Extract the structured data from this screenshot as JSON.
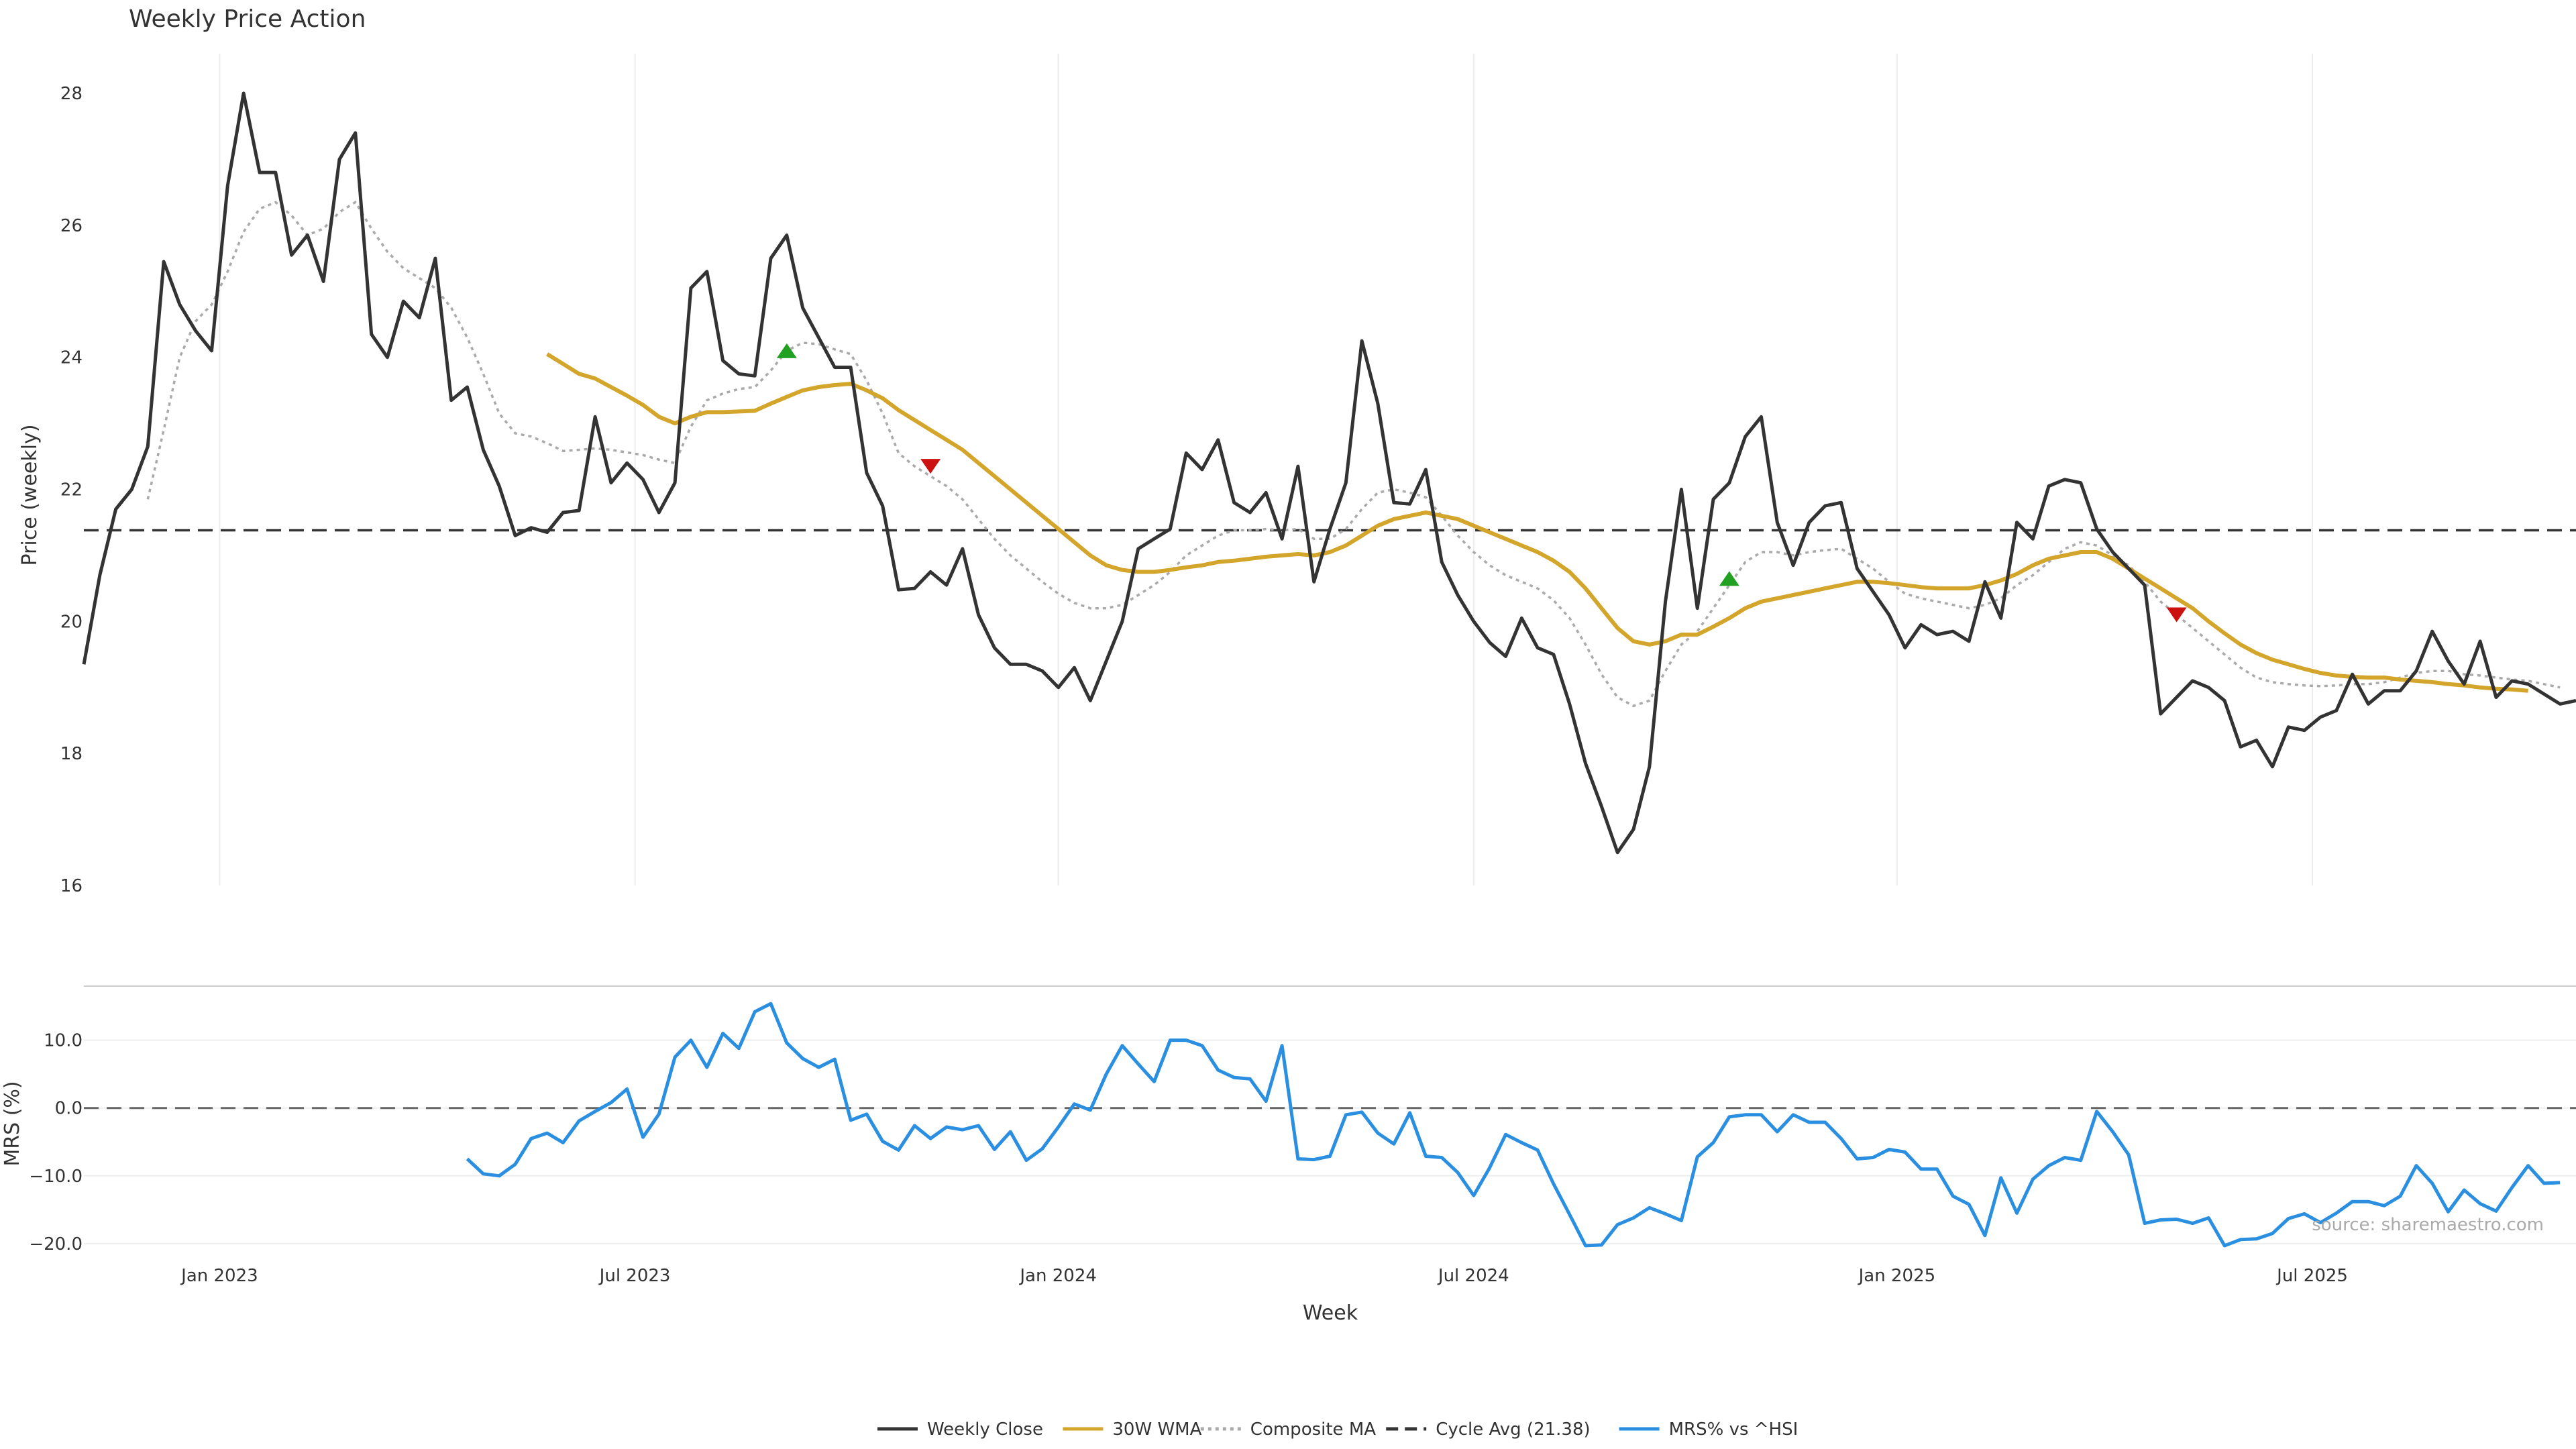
{
  "chart_data": {
    "type": "line",
    "title": "Weekly Price Action",
    "source": "source: sharemaestro.com",
    "xlabel": "Week",
    "x_ticks": [
      {
        "label": "Jan 2023",
        "week": 8.5
      },
      {
        "label": "Jul 2023",
        "week": 34.5
      },
      {
        "label": "Jan 2024",
        "week": 61
      },
      {
        "label": "Jul 2024",
        "week": 87
      },
      {
        "label": "Jan 2025",
        "week": 113.5
      },
      {
        "label": "Jul 2025",
        "week": 139.5
      }
    ],
    "xlim": [
      0,
      156
    ],
    "price_panel": {
      "ylabel": "Price (weekly)",
      "ylim": [
        16,
        28.6
      ],
      "yticks": [
        16,
        18,
        20,
        22,
        24,
        26,
        28
      ],
      "series": [
        {
          "name": "Weekly Close",
          "color": "#333333",
          "values": [
            19.35,
            20.7,
            21.7,
            22.0,
            22.65,
            25.45,
            24.8,
            24.4,
            24.1,
            26.6,
            28.0,
            26.8,
            26.8,
            25.55,
            25.85,
            25.15,
            27.0,
            27.4,
            24.35,
            24.0,
            24.85,
            24.6,
            25.5,
            23.35,
            23.55,
            22.6,
            22.05,
            21.3,
            21.42,
            21.35,
            21.65,
            21.68,
            23.1,
            22.1,
            22.4,
            22.15,
            21.65,
            22.1,
            25.05,
            25.3,
            23.95,
            23.75,
            23.72,
            25.5,
            25.85,
            24.75,
            24.3,
            23.85,
            23.85,
            22.25,
            21.75,
            20.48,
            20.5,
            20.75,
            20.55,
            21.1,
            20.1,
            19.6,
            19.35,
            19.35,
            19.25,
            19.0,
            19.3,
            18.8,
            19.4,
            20.0,
            21.1,
            21.25,
            21.4,
            22.55,
            22.3,
            22.75,
            21.8,
            21.65,
            21.95,
            21.25,
            22.35,
            20.6,
            21.4,
            22.1,
            24.25,
            23.3,
            21.8,
            21.78,
            22.3,
            20.9,
            20.4,
            20.0,
            19.68,
            19.47,
            20.05,
            19.6,
            19.5,
            18.75,
            17.85,
            17.2,
            16.5,
            16.85,
            17.8,
            20.3,
            22.0,
            20.2,
            21.85,
            22.1,
            22.8,
            23.1,
            21.5,
            20.85,
            21.5,
            21.75,
            21.8,
            20.8,
            20.45,
            20.1,
            19.6,
            19.95,
            19.8,
            19.85,
            19.7,
            20.6,
            20.05,
            21.5,
            21.25,
            22.05,
            22.15,
            22.1,
            21.4,
            21.05,
            20.8,
            20.55,
            18.6,
            18.85,
            19.1,
            19.0,
            18.8,
            18.1,
            18.2,
            17.8,
            18.4,
            18.35,
            18.55,
            18.65,
            19.2,
            18.75,
            18.95,
            18.95,
            19.25,
            19.85,
            19.4,
            19.05,
            19.7,
            18.85,
            19.1,
            19.05,
            18.9,
            18.75,
            18.8
          ]
        },
        {
          "name": "30W WMA",
          "color": "#d4a52b",
          "values": [
            null,
            null,
            null,
            null,
            null,
            null,
            null,
            null,
            null,
            null,
            null,
            null,
            null,
            null,
            null,
            null,
            null,
            null,
            null,
            null,
            null,
            null,
            null,
            null,
            null,
            null,
            null,
            null,
            null,
            24.05,
            23.9,
            23.75,
            23.68,
            23.55,
            23.42,
            23.28,
            23.1,
            23.0,
            23.1,
            23.17,
            23.17,
            23.18,
            23.19,
            23.3,
            23.4,
            23.5,
            23.55,
            23.58,
            23.6,
            23.5,
            23.38,
            23.2,
            23.05,
            22.9,
            22.75,
            22.6,
            22.4,
            22.2,
            22.0,
            21.8,
            21.6,
            21.4,
            21.2,
            21.0,
            20.85,
            20.78,
            20.75,
            20.75,
            20.78,
            20.82,
            20.85,
            20.9,
            20.92,
            20.95,
            20.98,
            21.0,
            21.02,
            21.0,
            21.05,
            21.15,
            21.3,
            21.45,
            21.55,
            21.6,
            21.65,
            21.6,
            21.55,
            21.45,
            21.35,
            21.25,
            21.15,
            21.05,
            20.92,
            20.75,
            20.5,
            20.2,
            19.9,
            19.7,
            19.65,
            19.7,
            19.8,
            19.8,
            19.92,
            20.05,
            20.2,
            20.3,
            20.35,
            20.4,
            20.45,
            20.5,
            20.55,
            20.6,
            20.6,
            20.58,
            20.55,
            20.52,
            20.5,
            20.5,
            20.5,
            20.55,
            20.62,
            20.72,
            20.85,
            20.95,
            21.0,
            21.05,
            21.05,
            20.95,
            20.8,
            20.65,
            20.5,
            20.35,
            20.2,
            20.0,
            19.82,
            19.65,
            19.52,
            19.42,
            19.35,
            19.28,
            19.22,
            19.18,
            19.16,
            19.15,
            19.15,
            19.12,
            19.1,
            19.08,
            19.05,
            19.03,
            19.0,
            18.98,
            18.97,
            18.95
          ]
        },
        {
          "name": "Composite MA",
          "color": "#aaaaaa",
          "values": [
            null,
            null,
            null,
            null,
            21.85,
            22.9,
            24.0,
            24.55,
            24.8,
            25.3,
            25.9,
            26.25,
            26.35,
            26.15,
            25.85,
            25.95,
            26.2,
            26.35,
            25.95,
            25.6,
            25.35,
            25.2,
            25.05,
            24.75,
            24.3,
            23.75,
            23.15,
            22.85,
            22.8,
            22.7,
            22.58,
            22.6,
            22.62,
            22.6,
            22.56,
            22.52,
            22.45,
            22.4,
            22.95,
            23.35,
            23.45,
            23.52,
            23.55,
            23.8,
            24.1,
            24.22,
            24.2,
            24.12,
            24.05,
            23.65,
            23.15,
            22.55,
            22.35,
            22.2,
            22.05,
            21.85,
            21.55,
            21.25,
            21.0,
            20.8,
            20.6,
            20.42,
            20.28,
            20.2,
            20.2,
            20.25,
            20.4,
            20.55,
            20.75,
            21.0,
            21.15,
            21.3,
            21.38,
            21.38,
            21.4,
            21.38,
            21.4,
            21.25,
            21.25,
            21.4,
            21.7,
            21.95,
            22.0,
            21.95,
            21.88,
            21.6,
            21.3,
            21.05,
            20.85,
            20.7,
            20.6,
            20.5,
            20.32,
            20.05,
            19.65,
            19.2,
            18.85,
            18.72,
            18.8,
            19.25,
            19.65,
            19.85,
            20.2,
            20.55,
            20.9,
            21.05,
            21.05,
            21.0,
            21.05,
            21.08,
            21.1,
            20.95,
            20.8,
            20.6,
            20.42,
            20.35,
            20.3,
            20.25,
            20.2,
            20.25,
            20.35,
            20.55,
            20.7,
            20.9,
            21.1,
            21.2,
            21.15,
            21.0,
            20.85,
            20.6,
            20.3,
            20.1,
            19.9,
            19.7,
            19.5,
            19.3,
            19.15,
            19.08,
            19.05,
            19.03,
            19.02,
            19.03,
            19.05,
            19.05,
            19.08,
            19.15,
            19.22,
            19.25,
            19.25,
            19.2,
            19.18,
            19.15,
            19.12,
            19.1,
            19.05,
            19.0
          ]
        }
      ],
      "cycle_avg": {
        "name": "Cycle Avg (21.38)",
        "value": 21.38,
        "color": "#333333"
      },
      "signals": [
        {
          "type": "buy",
          "week": 44,
          "price": 24.1,
          "color": "#22a022"
        },
        {
          "type": "sell",
          "week": 53,
          "price": 22.35,
          "color": "#cc1111"
        },
        {
          "type": "buy",
          "week": 103,
          "price": 20.65,
          "color": "#22a022"
        },
        {
          "type": "sell",
          "week": 131,
          "price": 20.1,
          "color": "#cc1111"
        }
      ]
    },
    "mrs_panel": {
      "ylabel": "MRS (%)",
      "ylim": [
        -21,
        16
      ],
      "yticks": [
        -20.0,
        -10.0,
        0.0,
        10.0
      ],
      "ytick_labels": [
        "−20.0",
        "−10.0",
        "0.0",
        "10.0"
      ],
      "zero_line": 0,
      "series": {
        "name": "MRS% vs ^HSI",
        "color": "#2a8fe0",
        "start_week": 24,
        "values": [
          -7.5,
          -9.7,
          -10.0,
          -8.3,
          -4.5,
          -3.7,
          -5.1,
          -1.9,
          -0.5,
          0.8,
          2.8,
          -4.3,
          -0.9,
          7.5,
          10.0,
          6.0,
          11.0,
          8.8,
          14.2,
          15.4,
          9.6,
          7.3,
          6.0,
          7.2,
          -1.8,
          -0.9,
          -4.9,
          -6.2,
          -2.6,
          -4.5,
          -2.8,
          -3.2,
          -2.6,
          -6.1,
          -3.5,
          -7.7,
          -6.0,
          -2.8,
          0.6,
          -0.3,
          5.0,
          9.2,
          6.5,
          3.9,
          10.0,
          10.0,
          9.2,
          5.6,
          4.5,
          4.3,
          1.0,
          9.2,
          -7.5,
          -7.6,
          -7.1,
          -1.0,
          -0.6,
          -3.7,
          -5.3,
          -0.7,
          -7.1,
          -7.3,
          -9.5,
          -12.9,
          -8.8,
          -3.9,
          -5.1,
          -6.2,
          -11.2,
          -15.7,
          -20.3,
          -20.2,
          -17.2,
          -16.2,
          -14.7,
          -15.6,
          -16.6,
          -7.2,
          -5.1,
          -1.3,
          -1.0,
          -1.0,
          -3.5,
          -1.0,
          -2.1,
          -2.1,
          -4.5,
          -7.5,
          -7.3,
          -6.1,
          -6.5,
          -9.0,
          -9.0,
          -13.0,
          -14.2,
          -18.8,
          -10.3,
          -15.5,
          -10.5,
          -8.5,
          -7.3,
          -7.7,
          -0.5,
          -3.5,
          -6.9,
          -17.0,
          -16.5,
          -16.4,
          -17.0,
          -16.2,
          -20.3,
          -19.4,
          -19.3,
          -18.5,
          -16.3,
          -15.6,
          -16.9,
          -15.5,
          -13.8,
          -13.8,
          -14.4,
          -13.0,
          -8.5,
          -11.1,
          -15.3,
          -12.1,
          -14.1,
          -15.2,
          -11.7,
          -8.5,
          -11.1,
          -11.0
        ]
      }
    },
    "legend": {
      "placement": "bottom-center",
      "items": [
        {
          "label": "Weekly Close",
          "color": "#333333",
          "style": "solid"
        },
        {
          "label": "30W WMA",
          "color": "#d4a52b",
          "style": "solid"
        },
        {
          "label": "Composite MA",
          "color": "#aaaaaa",
          "style": "dotted"
        },
        {
          "label": "Cycle Avg (21.38)",
          "color": "#333333",
          "style": "dashed"
        },
        {
          "label": "MRS% vs ^HSI",
          "color": "#2a8fe0",
          "style": "solid"
        }
      ]
    }
  }
}
